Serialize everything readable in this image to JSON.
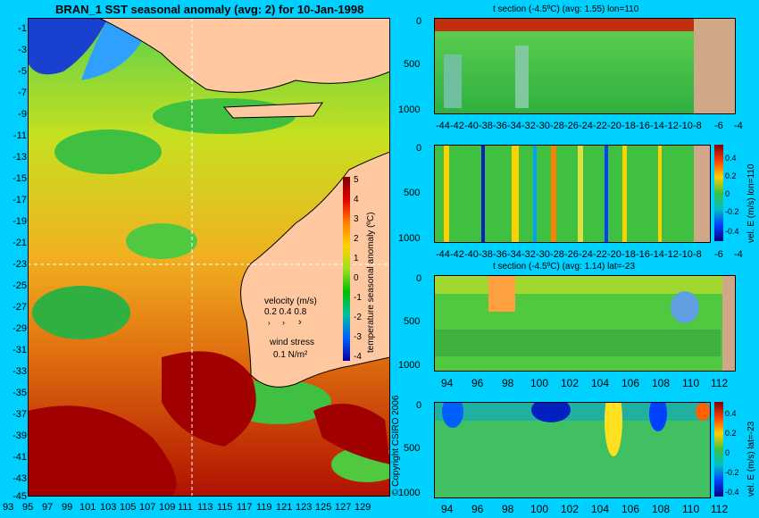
{
  "map": {
    "title": "BRAN_1 SST seasonal anomaly (avg: 2) for 10-Jan-1998",
    "lat_labels": [
      "-1",
      "-3",
      "-5",
      "-7",
      "-9",
      "-11",
      "-13",
      "-15",
      "-17",
      "-19",
      "-21",
      "-23",
      "-25",
      "-27",
      "-29",
      "-31",
      "-33",
      "-35",
      "-37",
      "-39",
      "-41",
      "-43",
      "-45"
    ],
    "lon_labels": [
      "93",
      "95",
      "97",
      "99",
      "101",
      "103",
      "105",
      "107",
      "109",
      "111",
      "113",
      "115",
      "117",
      "119",
      "121",
      "123",
      "125",
      "127",
      "129"
    ],
    "colorbar": {
      "ticks": [
        "5",
        "4",
        "3",
        "2",
        "1",
        "0",
        "-1",
        "-2",
        "-3",
        "-4"
      ],
      "label": "temperature seasonal anomaly (ºC)"
    },
    "velocity_legend": {
      "title": "velocity (m/s)",
      "scale": "0.2 0.4 0.8",
      "wind_title": "wind stress",
      "wind_value": "0.1 N/m²"
    },
    "copyright": "© Copyright CSIRO 2006",
    "colors": {
      "warm": "#a00000",
      "ocean": "#00b000",
      "land": "#ffc8a0",
      "background": "#00d0ff"
    }
  },
  "panels": [
    {
      "title": "t section (-4.5ºC) (avg: 1.55) lon=110",
      "y_ticks": [
        "0",
        "500",
        "1000"
      ],
      "x_ticks": [
        "-44",
        "-42",
        "-40",
        "-38",
        "-36",
        "-34",
        "-32",
        "-30",
        "-28",
        "-26",
        "-24",
        "-22",
        "-20",
        "-18",
        "-16",
        "-14",
        "-12",
        "-10",
        "-8",
        "-6",
        "-4"
      ]
    },
    {
      "title": "",
      "y_ticks": [
        "0",
        "500",
        "1000"
      ],
      "x_ticks": [
        "-44",
        "-42",
        "-40",
        "-38",
        "-36",
        "-34",
        "-32",
        "-30",
        "-28",
        "-26",
        "-24",
        "-22",
        "-20",
        "-18",
        "-16",
        "-14",
        "-12",
        "-10",
        "-8",
        "-6",
        "-4"
      ],
      "colorbar_ticks": [
        "0.4",
        "0.2",
        "0",
        "-0.2",
        "-0.4"
      ],
      "colorbar_label": "vel. E (m/s) lon=110"
    },
    {
      "title": "t section (-4.5ºC) (avg: 1.14) lat=-23",
      "y_ticks": [
        "0",
        "500",
        "1000"
      ],
      "x_ticks": [
        "94",
        "96",
        "98",
        "100",
        "102",
        "104",
        "106",
        "108",
        "110",
        "112"
      ]
    },
    {
      "title": "",
      "y_ticks": [
        "0",
        "500",
        "1000"
      ],
      "x_ticks": [
        "94",
        "96",
        "98",
        "100",
        "102",
        "104",
        "106",
        "108",
        "110",
        "112"
      ],
      "colorbar_ticks": [
        "0.4",
        "0.2",
        "0",
        "-0.2",
        "-0.4"
      ],
      "colorbar_label": "vel. E (m/s) lat=-23"
    }
  ]
}
